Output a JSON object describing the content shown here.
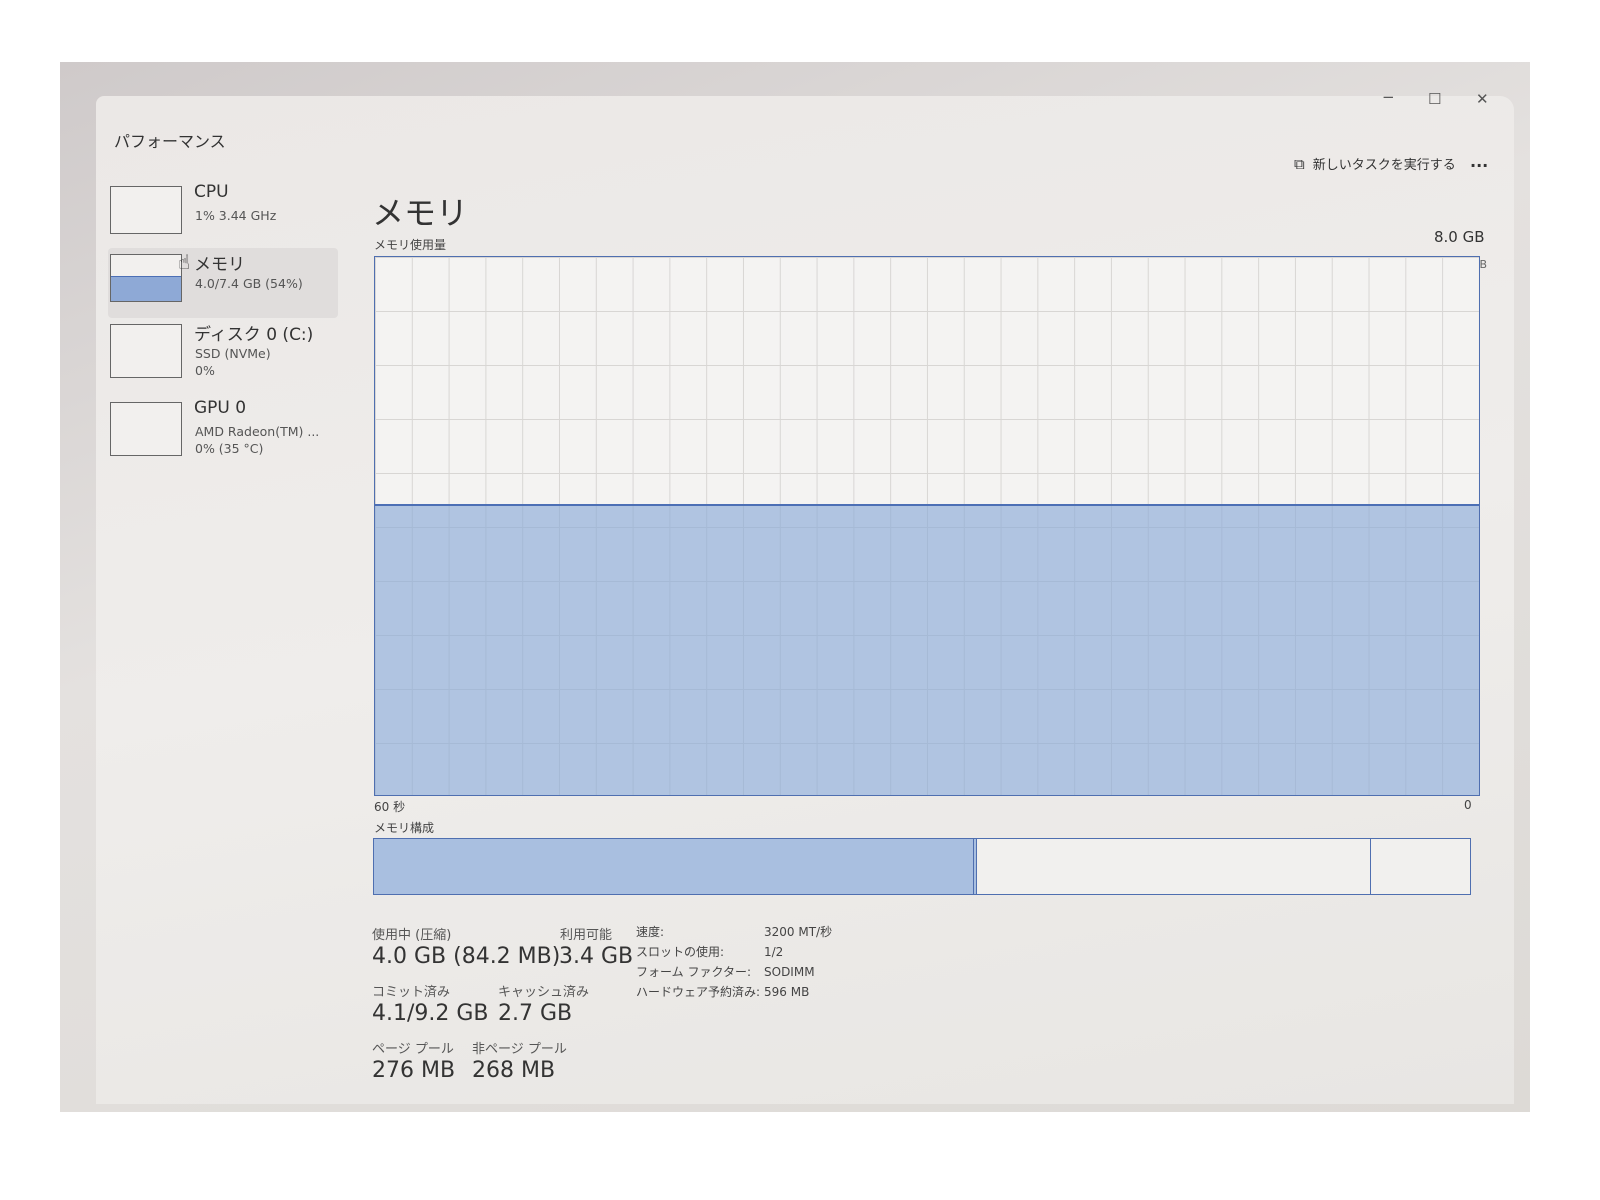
{
  "window": {
    "title": "パフォーマンス",
    "run_task_label": "新しいタスクを実行する",
    "more_label": "...",
    "minimize": "−",
    "maximize": "☐",
    "close": "✕"
  },
  "sidebar": {
    "items": [
      {
        "name": "CPU",
        "line1": "1%  3.44 GHz",
        "line2": ""
      },
      {
        "name": "メモリ",
        "line1": "4.0/7.4 GB (54%)",
        "line2": "",
        "usage_fraction": 0.54
      },
      {
        "name": "ディスク 0 (C:)",
        "line1": "SSD (NVMe)",
        "line2": "0%"
      },
      {
        "name": "GPU 0",
        "line1": "AMD Radeon(TM) ...",
        "line2": "0%  (35 °C)"
      }
    ]
  },
  "main": {
    "title": "メモリ",
    "usage_label": "メモリ使用量",
    "max_label": "8.0 GB",
    "graph_top_label": "7.4 GB",
    "x_left": "60 秒",
    "x_right": "0",
    "usage_fraction": 0.54,
    "composition_label": "メモリ構成",
    "composition": {
      "in_use": 0.55,
      "standby": 0.36,
      "free": 0.09
    },
    "stats": {
      "in_use_label": "使用中 (圧縮)",
      "in_use": "4.0 GB (84.2 MB)",
      "available_label": "利用可能",
      "available": "3.4 GB",
      "committed_label": "コミット済み",
      "committed": "4.1/9.2 GB",
      "cached_label": "キャッシュ済み",
      "cached": "2.7 GB",
      "paged_label": "ページ プール",
      "paged": "276 MB",
      "nonpaged_label": "非ページ プール",
      "nonpaged": "268 MB"
    },
    "specs": [
      {
        "k": "速度:",
        "v": "3200 MT/秒"
      },
      {
        "k": "スロットの使用:",
        "v": "1/2"
      },
      {
        "k": "フォーム ファクター:",
        "v": "SODIMM"
      },
      {
        "k": "ハードウェア予約済み:",
        "v": "596 MB"
      }
    ]
  },
  "colors": {
    "accent": "#4c6fb5",
    "fill": "#a9bfe0"
  }
}
